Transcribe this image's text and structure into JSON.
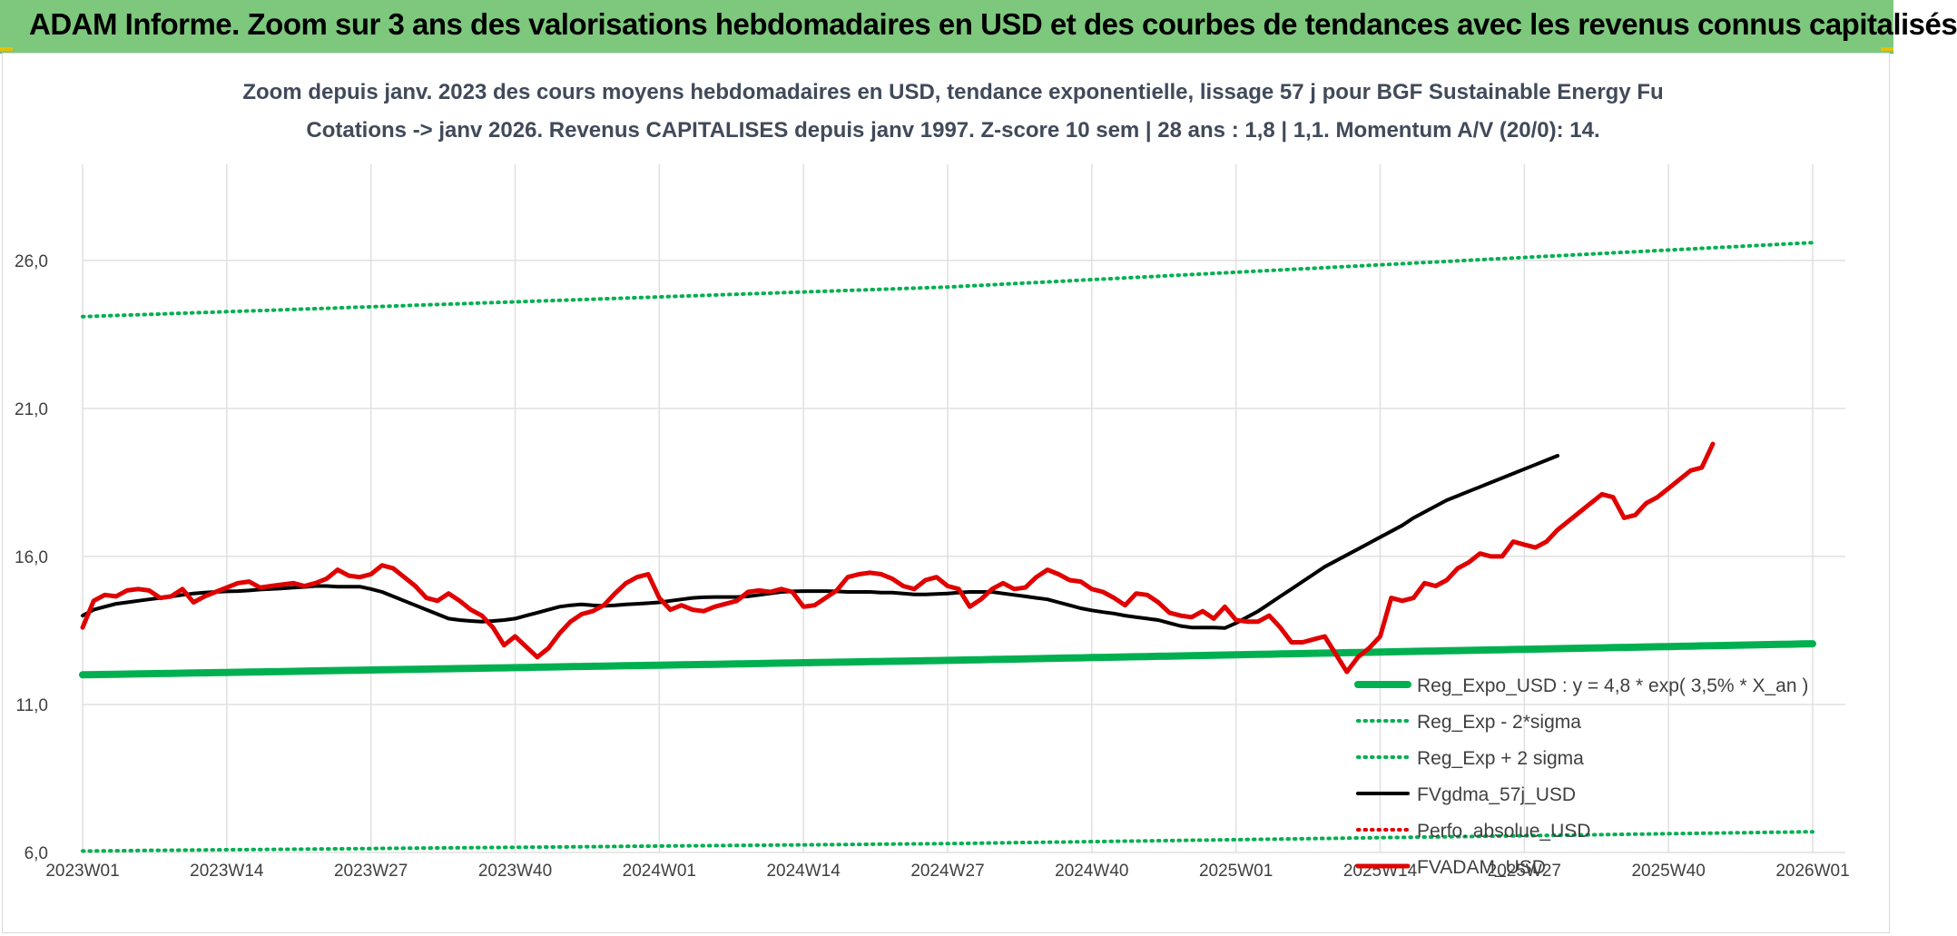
{
  "banner": {
    "title": "ADAM Informe. Zoom sur 3 ans des valorisations hebdomadaires en USD et des courbes de tendances avec les revenus connus capitalisés"
  },
  "colors": {
    "banner_bg": "#7dc87d",
    "regression": "#00b050",
    "smoothed": "#000000",
    "price": "#e00000",
    "perf_absolute": "#e00000"
  },
  "chart_data": {
    "type": "line",
    "title": "Zoom depuis janv. 2023 des cours moyens hebdomadaires en USD, tendance exponentielle, lissage 57 j pour BGF Sustainable Energy Fu",
    "subtitle": "Cotations -> janv 2026. Revenus CAPITALISES depuis janv 1997. Z-score 10 sem | 28 ans : 1,8 | 1,1. Momentum A/V (20/0): 14.",
    "xlabel": "",
    "ylabel": "",
    "ylim": [
      6.0,
      29.0
    ],
    "yticks": [
      "6,0",
      "11,0",
      "16,0",
      "21,0",
      "26,0"
    ],
    "xticks": [
      "2023W01",
      "2023W14",
      "2023W27",
      "2023W40",
      "2024W01",
      "2024W14",
      "2024W27",
      "2024W40",
      "2025W01",
      "2025W14",
      "2025W27",
      "2025W40",
      "2026W01"
    ],
    "grid": "vertical and horizontal",
    "legend_position": "bottom-right inside",
    "series": [
      {
        "name": "Reg_Expo_USD : y = 4,8 * exp( 3,5% * X_an )",
        "style": "thick-solid",
        "color": "#00b050",
        "values": [
          12.0,
          12.49,
          13.05
        ]
      },
      {
        "name": "Reg_Exp - 2*sigma",
        "style": "dotted",
        "color": "#00b050",
        "values": [
          6.05,
          6.3,
          6.7
        ]
      },
      {
        "name": "Reg_Exp + 2 sigma",
        "style": "dotted",
        "color": "#00b050",
        "values": [
          24.1,
          25.1,
          26.6
        ]
      },
      {
        "name": "FVgdma_57j_USD",
        "style": "solid",
        "color": "#000000",
        "values": [
          14.0,
          14.2,
          14.3,
          14.4,
          14.45,
          14.5,
          14.55,
          14.6,
          14.65,
          14.7,
          14.75,
          14.78,
          14.8,
          14.82,
          14.83,
          14.85,
          14.88,
          14.9,
          14.92,
          14.95,
          14.97,
          15.0,
          15.0,
          14.98,
          14.98,
          14.98,
          14.9,
          14.8,
          14.65,
          14.5,
          14.35,
          14.2,
          14.05,
          13.9,
          13.85,
          13.82,
          13.8,
          13.82,
          13.85,
          13.9,
          14.0,
          14.1,
          14.2,
          14.3,
          14.35,
          14.38,
          14.35,
          14.33,
          14.35,
          14.38,
          14.4,
          14.42,
          14.45,
          14.5,
          14.55,
          14.6,
          14.62,
          14.63,
          14.63,
          14.63,
          14.65,
          14.7,
          14.75,
          14.8,
          14.82,
          14.83,
          14.83,
          14.83,
          14.82,
          14.8,
          14.8,
          14.8,
          14.78,
          14.78,
          14.75,
          14.72,
          14.72,
          14.73,
          14.75,
          14.78,
          14.8,
          14.8,
          14.8,
          14.75,
          14.7,
          14.65,
          14.6,
          14.55,
          14.45,
          14.35,
          14.25,
          14.18,
          14.12,
          14.07,
          14.0,
          13.95,
          13.9,
          13.85,
          13.75,
          13.65,
          13.6,
          13.6,
          13.6,
          13.58,
          13.75,
          13.95,
          14.15,
          14.4,
          14.65,
          14.9,
          15.15,
          15.4,
          15.65,
          15.85,
          16.05,
          16.25,
          16.45,
          16.65,
          16.85,
          17.05,
          17.3,
          17.5,
          17.7,
          17.9,
          18.05,
          18.2,
          18.35,
          18.5,
          18.65,
          18.8,
          18.95,
          19.1,
          19.25,
          19.4
        ]
      },
      {
        "name": "Perfo. absolue_USD",
        "style": "dotted",
        "color": "#e00000",
        "values": []
      },
      {
        "name": "FVADAM_USD",
        "style": "thick-solid",
        "color": "#e00000",
        "values": [
          13.6,
          14.5,
          14.7,
          14.65,
          14.85,
          14.9,
          14.85,
          14.6,
          14.65,
          14.9,
          14.45,
          14.65,
          14.8,
          14.95,
          15.1,
          15.15,
          14.95,
          15.0,
          15.05,
          15.1,
          15.0,
          15.1,
          15.25,
          15.55,
          15.35,
          15.3,
          15.4,
          15.7,
          15.6,
          15.3,
          15.0,
          14.6,
          14.5,
          14.75,
          14.5,
          14.2,
          14.0,
          13.6,
          13.0,
          13.3,
          12.95,
          12.6,
          12.9,
          13.4,
          13.8,
          14.05,
          14.15,
          14.35,
          14.75,
          15.1,
          15.3,
          15.4,
          14.6,
          14.2,
          14.35,
          14.2,
          14.15,
          14.3,
          14.4,
          14.5,
          14.8,
          14.85,
          14.8,
          14.9,
          14.8,
          14.3,
          14.35,
          14.6,
          14.85,
          15.3,
          15.4,
          15.45,
          15.4,
          15.25,
          15.0,
          14.9,
          15.2,
          15.3,
          15.0,
          14.9,
          14.3,
          14.55,
          14.9,
          15.1,
          14.9,
          14.95,
          15.3,
          15.55,
          15.4,
          15.2,
          15.15,
          14.9,
          14.8,
          14.6,
          14.35,
          14.75,
          14.7,
          14.45,
          14.1,
          14.0,
          13.95,
          14.15,
          13.9,
          14.3,
          13.85,
          13.8,
          13.8,
          14.0,
          13.6,
          13.1,
          13.1,
          13.2,
          13.3,
          12.7,
          12.1,
          12.6,
          12.9,
          13.3,
          14.6,
          14.5,
          14.6,
          15.1,
          15.0,
          15.2,
          15.6,
          15.8,
          16.1,
          16.0,
          16.0,
          16.5,
          16.4,
          16.3,
          16.5,
          16.9,
          17.2,
          17.5,
          17.8,
          18.1,
          18.0,
          17.3,
          17.4,
          17.8,
          18.0,
          18.3,
          18.6,
          18.9,
          19.0,
          19.8
        ]
      }
    ]
  }
}
